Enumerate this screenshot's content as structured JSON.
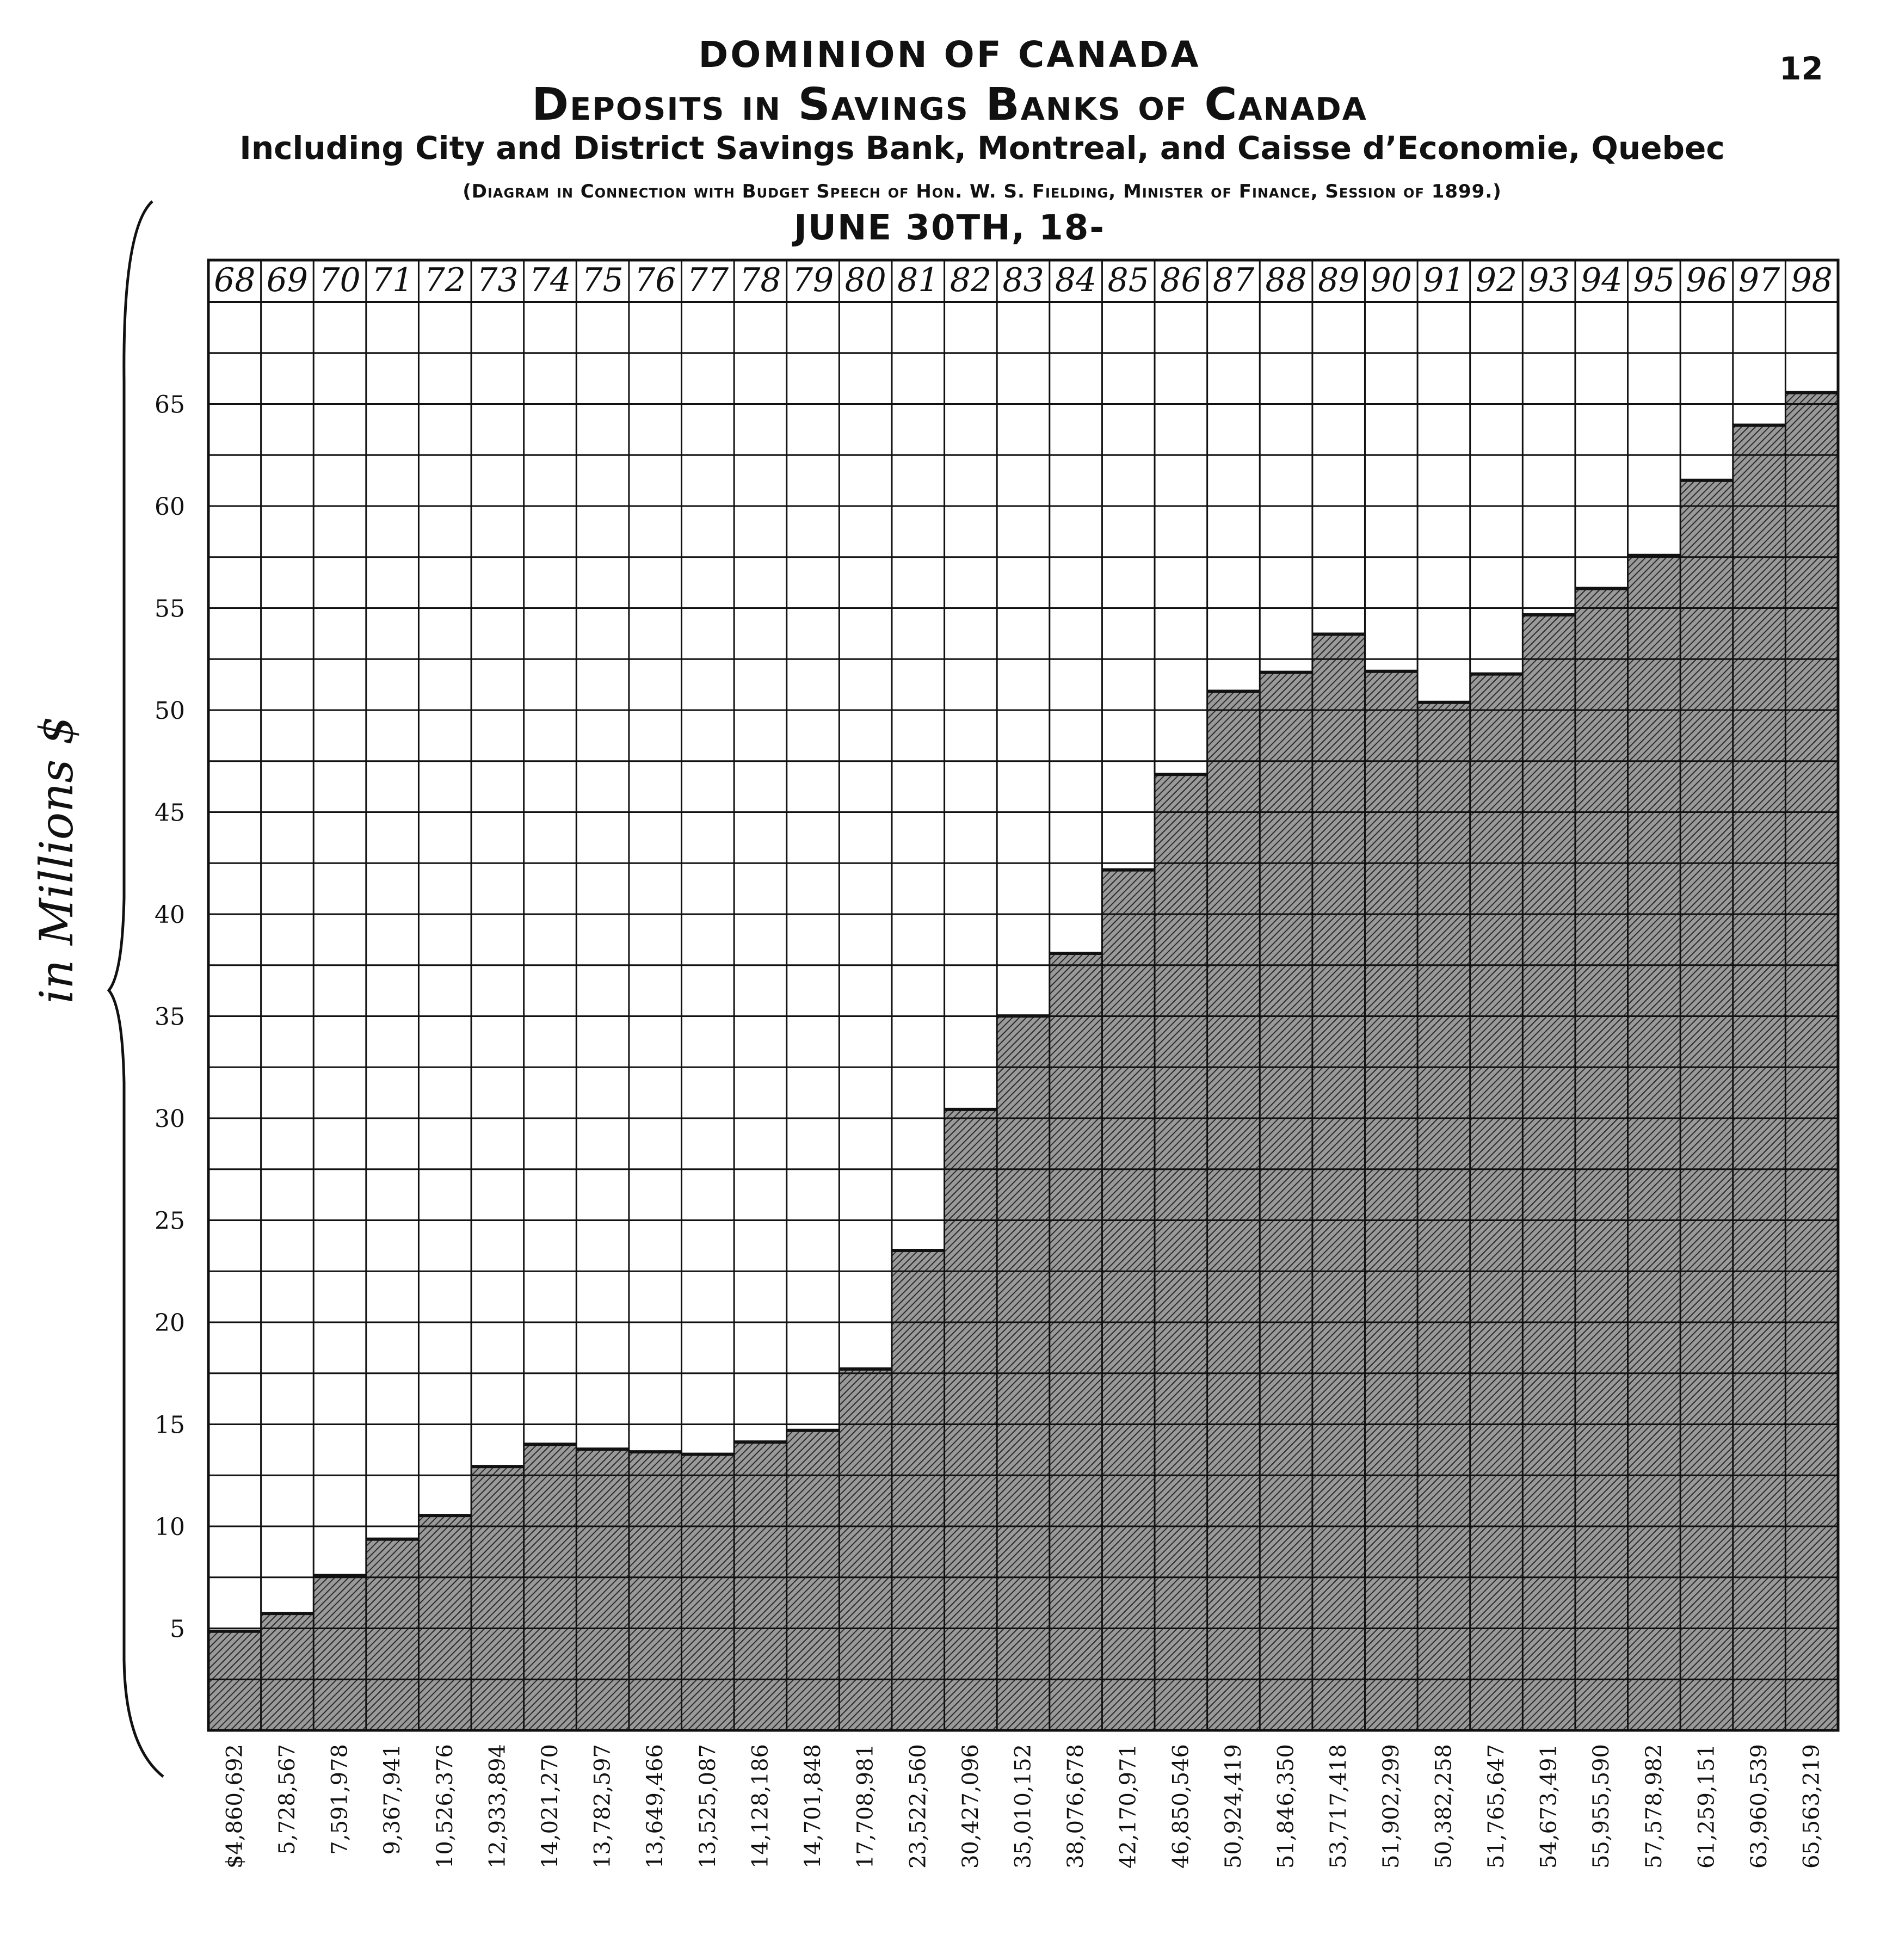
{
  "header": {
    "title": "DOMINION OF CANADA",
    "subtitle": "Deposits in Savings Banks of Canada",
    "subtitle2": "Including City and District Savings Bank, Montreal, and Caisse d’Economie, Quebec",
    "note": "(Diagram in Connection with Budget Speech of Hon. W. S. Fielding, Minister of Finance, Session of 1899.)",
    "date_line": "JUNE 30TH, 18-",
    "page_number": "12"
  },
  "colors": {
    "ink": "#111111",
    "fill": "#8c8c8c",
    "paper": "#ffffff"
  },
  "chart_data": {
    "type": "bar",
    "title": "Deposits in Savings Banks of Canada",
    "ylabel": "in Millions $",
    "ylim": [
      0,
      70
    ],
    "yticks": [
      5,
      10,
      15,
      20,
      25,
      30,
      35,
      40,
      45,
      50,
      55,
      60,
      65
    ],
    "categories": [
      "68",
      "69",
      "70",
      "71",
      "72",
      "73",
      "74",
      "75",
      "76",
      "77",
      "78",
      "79",
      "80",
      "81",
      "82",
      "83",
      "84",
      "85",
      "86",
      "87",
      "88",
      "89",
      "90",
      "91",
      "92",
      "93",
      "94",
      "95",
      "96",
      "97",
      "98"
    ],
    "value_labels": [
      "$4,860,692",
      "5,728,567",
      "7,591,978",
      "9,367,941",
      "10,526,376",
      "12,933,894",
      "14,021,270",
      "13,782,597",
      "13,649,466",
      "13,525,087",
      "14,128,186",
      "14,701,848",
      "17,708,981",
      "23,522,560",
      "30,427,096",
      "35,010,152",
      "38,076,678",
      "42,170,971",
      "46,850,546",
      "50,924,419",
      "51,846,350",
      "53,717,418",
      "51,902,299",
      "50,382,258",
      "51,765,647",
      "54,673,491",
      "55,955,590",
      "57,578,982",
      "61,259,151",
      "63,960,539",
      "65,563,219"
    ],
    "values": [
      4.86,
      5.73,
      7.59,
      9.37,
      10.53,
      12.93,
      14.02,
      13.78,
      13.65,
      13.53,
      14.13,
      14.7,
      17.71,
      23.52,
      30.43,
      35.01,
      38.08,
      42.17,
      46.85,
      50.92,
      51.85,
      53.72,
      51.9,
      50.38,
      51.77,
      54.67,
      55.96,
      57.58,
      61.26,
      63.96,
      65.56
    ],
    "grid": true,
    "fill_style": "hatched"
  }
}
